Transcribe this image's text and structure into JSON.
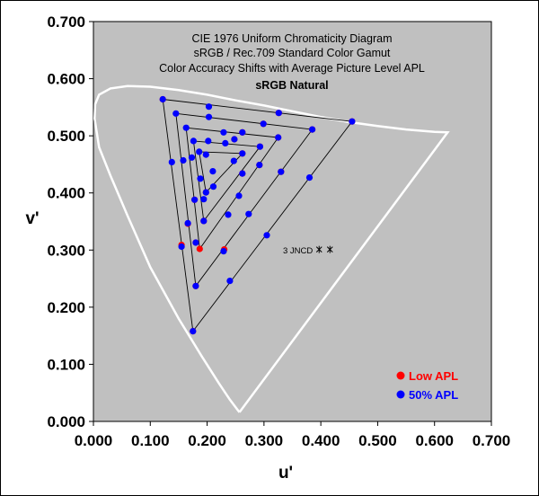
{
  "chart_data": {
    "type": "scatter",
    "title_lines": [
      "CIE 1976 Uniform Chromaticity Diagram",
      "sRGB / Rec.709 Standard Color Gamut",
      "Color Accuracy Shifts with Average Picture Level APL"
    ],
    "subtitle": "sRGB Natural",
    "xlabel": "u'",
    "ylabel": "v'",
    "xlim": [
      0,
      0.7
    ],
    "ylim": [
      0,
      0.7
    ],
    "x_ticks": [
      "0.000",
      "0.100",
      "0.200",
      "0.300",
      "0.400",
      "0.500",
      "0.600",
      "0.700"
    ],
    "y_ticks": [
      "0.000",
      "0.100",
      "0.200",
      "0.300",
      "0.400",
      "0.500",
      "0.600",
      "0.700"
    ],
    "background": "#c0c0c0",
    "locus_color": "#ffffff",
    "annotation": {
      "text": "3 JNCD",
      "markers": [
        [
          0.397,
          0.301
        ],
        [
          0.416,
          0.301
        ]
      ]
    },
    "spectral_locus": [
      [
        0.257,
        0.016
      ],
      [
        0.253,
        0.021
      ],
      [
        0.24,
        0.038
      ],
      [
        0.22,
        0.068
      ],
      [
        0.19,
        0.115
      ],
      [
        0.15,
        0.18
      ],
      [
        0.1,
        0.27
      ],
      [
        0.06,
        0.36
      ],
      [
        0.03,
        0.43
      ],
      [
        0.01,
        0.48
      ],
      [
        0.002,
        0.53
      ],
      [
        0.003,
        0.555
      ],
      [
        0.01,
        0.572
      ],
      [
        0.03,
        0.583
      ],
      [
        0.06,
        0.587
      ],
      [
        0.1,
        0.586
      ],
      [
        0.15,
        0.58
      ],
      [
        0.2,
        0.572
      ],
      [
        0.25,
        0.562
      ],
      [
        0.3,
        0.553
      ],
      [
        0.35,
        0.543
      ],
      [
        0.4,
        0.533
      ],
      [
        0.45,
        0.524
      ],
      [
        0.5,
        0.517
      ],
      [
        0.55,
        0.511
      ],
      [
        0.6,
        0.507
      ],
      [
        0.623,
        0.506
      ]
    ],
    "triangles": [
      [
        [
          0.122,
          0.564
        ],
        [
          0.455,
          0.525
        ],
        [
          0.175,
          0.158
        ]
      ],
      [
        [
          0.145,
          0.539
        ],
        [
          0.385,
          0.511
        ],
        [
          0.18,
          0.237
        ]
      ],
      [
        [
          0.163,
          0.514
        ],
        [
          0.325,
          0.497
        ],
        [
          0.187,
          0.302
        ]
      ],
      [
        [
          0.176,
          0.491
        ],
        [
          0.293,
          0.481
        ],
        [
          0.194,
          0.351
        ]
      ],
      [
        [
          0.186,
          0.472
        ],
        [
          0.262,
          0.469
        ],
        [
          0.198,
          0.401
        ]
      ]
    ],
    "series": [
      {
        "name": "Low APL",
        "color": "#ff0000",
        "points": [
          [
            0.122,
            0.564
          ],
          [
            0.455,
            0.525
          ],
          [
            0.175,
            0.158
          ],
          [
            0.385,
            0.511
          ],
          [
            0.18,
            0.237
          ],
          [
            0.325,
            0.497
          ],
          [
            0.187,
            0.302
          ],
          [
            0.293,
            0.481
          ],
          [
            0.194,
            0.351
          ],
          [
            0.262,
            0.469
          ],
          [
            0.198,
            0.401
          ],
          [
            0.155,
            0.309
          ],
          [
            0.166,
            0.346
          ],
          [
            0.18,
            0.313
          ],
          [
            0.23,
            0.301
          ],
          [
            0.178,
            0.388
          ],
          [
            0.326,
            0.54
          ],
          [
            0.299,
            0.521
          ],
          [
            0.262,
            0.506
          ],
          [
            0.248,
            0.494
          ],
          [
            0.33,
            0.437
          ],
          [
            0.292,
            0.449
          ],
          [
            0.262,
            0.434
          ]
        ]
      },
      {
        "name": "50% APL",
        "color": "#0000ff",
        "points": [
          [
            0.122,
            0.564
          ],
          [
            0.203,
            0.551
          ],
          [
            0.203,
            0.533
          ],
          [
            0.455,
            0.525
          ],
          [
            0.145,
            0.539
          ],
          [
            0.326,
            0.54
          ],
          [
            0.299,
            0.521
          ],
          [
            0.262,
            0.506
          ],
          [
            0.229,
            0.506
          ],
          [
            0.163,
            0.514
          ],
          [
            0.385,
            0.511
          ],
          [
            0.202,
            0.491
          ],
          [
            0.176,
            0.491
          ],
          [
            0.325,
            0.497
          ],
          [
            0.232,
            0.487
          ],
          [
            0.186,
            0.472
          ],
          [
            0.262,
            0.469
          ],
          [
            0.248,
            0.494
          ],
          [
            0.293,
            0.481
          ],
          [
            0.173,
            0.462
          ],
          [
            0.158,
            0.457
          ],
          [
            0.138,
            0.454
          ],
          [
            0.198,
            0.467
          ],
          [
            0.247,
            0.456
          ],
          [
            0.33,
            0.437
          ],
          [
            0.292,
            0.449
          ],
          [
            0.262,
            0.434
          ],
          [
            0.21,
            0.438
          ],
          [
            0.198,
            0.401
          ],
          [
            0.211,
            0.411
          ],
          [
            0.38,
            0.427
          ],
          [
            0.188,
            0.425
          ],
          [
            0.256,
            0.395
          ],
          [
            0.178,
            0.388
          ],
          [
            0.194,
            0.389
          ],
          [
            0.273,
            0.363
          ],
          [
            0.166,
            0.347
          ],
          [
            0.237,
            0.362
          ],
          [
            0.194,
            0.351
          ],
          [
            0.305,
            0.326
          ],
          [
            0.18,
            0.313
          ],
          [
            0.155,
            0.306
          ],
          [
            0.229,
            0.298
          ],
          [
            0.24,
            0.246
          ],
          [
            0.18,
            0.237
          ],
          [
            0.175,
            0.158
          ]
        ]
      }
    ]
  }
}
